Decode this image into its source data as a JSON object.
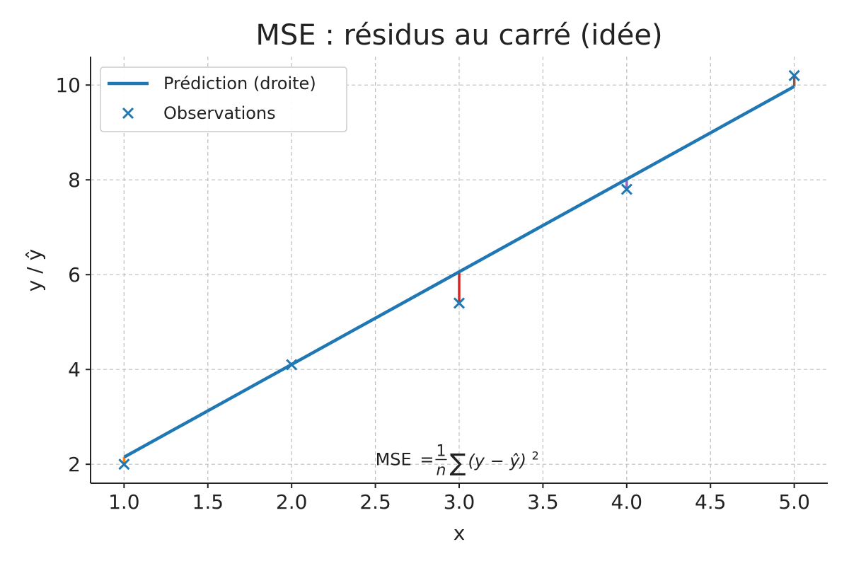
{
  "chart_data": {
    "type": "line",
    "title": "MSE : résidus au carré (idée)",
    "xlabel": "x",
    "ylabel": "y / ŷ",
    "xlim": [
      0.8,
      5.2
    ],
    "ylim": [
      1.6,
      10.6
    ],
    "xticks": [
      "1.0",
      "1.5",
      "2.0",
      "2.5",
      "3.0",
      "3.5",
      "4.0",
      "4.5",
      "5.0"
    ],
    "xtick_values": [
      1.0,
      1.5,
      2.0,
      2.5,
      3.0,
      3.5,
      4.0,
      4.5,
      5.0
    ],
    "yticks": [
      "2",
      "4",
      "6",
      "8",
      "10"
    ],
    "ytick_values": [
      2,
      4,
      6,
      8,
      10
    ],
    "grid": true,
    "legend_position": "top-left",
    "series": [
      {
        "name": "Prédiction (droite)",
        "kind": "line",
        "color": "#1f77b4",
        "x": [
          1,
          5
        ],
        "y": [
          2.15,
          9.97
        ]
      },
      {
        "name": "Observations",
        "kind": "scatter",
        "marker": "x",
        "color": "#1f77b4",
        "x": [
          1,
          2,
          3,
          4,
          5
        ],
        "y": [
          2.0,
          4.1,
          5.4,
          7.8,
          10.2
        ]
      }
    ],
    "residual_colors": [
      "#ff7f0e",
      "#2ca02c",
      "#d62728",
      "#9467bd",
      "#8c564b"
    ],
    "annotation": {
      "prefix": "MSE",
      "equals": "=",
      "numerator": "1",
      "denominator": "n",
      "sum": "∑",
      "body": "(y − ŷ)",
      "exponent": "2",
      "x": 2.5,
      "y": 2.1
    }
  }
}
